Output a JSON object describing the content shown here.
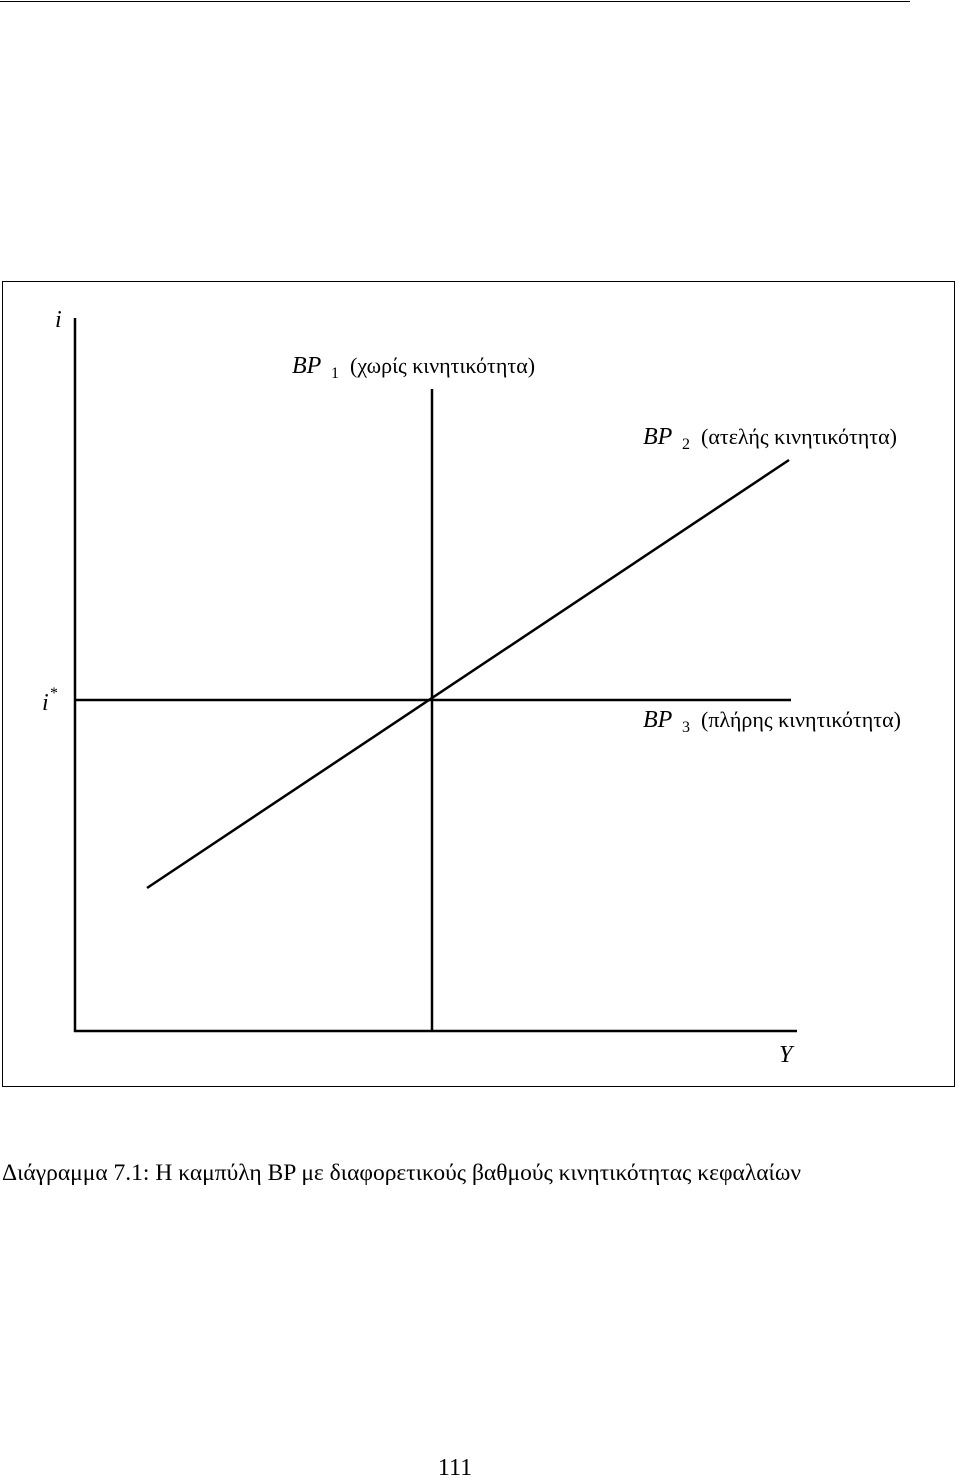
{
  "figure": {
    "axis_y_label": "i",
    "axis_x_label": "Y",
    "istar_label": "i",
    "istar_sup": "*",
    "curves": [
      {
        "name": "BP",
        "sub": "1",
        "desc": "(χωρίς κινητικότητα)"
      },
      {
        "name": "BP",
        "sub": "2",
        "desc": "(ατελής κινητικότητα)"
      },
      {
        "name": "BP",
        "sub": "3",
        "desc": "(πλήρης κινητικότητα)"
      }
    ]
  },
  "caption": {
    "label": "Διάγραμμα 7.1:",
    "text": "Η καμπύλη BP με διαφορετικούς βαθμούς κινητικότητας κεφαλαίων"
  },
  "page_number": "111"
}
